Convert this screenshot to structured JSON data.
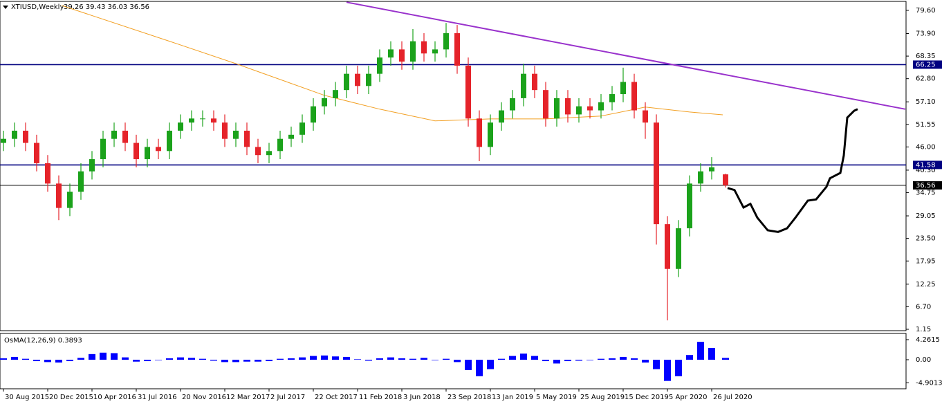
{
  "chart_data": {
    "type": "candlestick",
    "title": "XTIUSD,Weekly",
    "ohlc_text": "39,26 39.43 36.03 36.56",
    "up_color": "#1ba21b",
    "down_color": "#e5232a",
    "x": [
      0,
      4,
      8,
      12,
      16,
      20,
      24,
      28,
      32,
      36,
      40,
      44,
      48,
      52,
      56,
      60,
      64,
      68,
      72,
      76,
      80,
      84,
      88,
      92,
      96,
      100,
      104,
      108,
      112,
      116,
      120,
      124,
      128,
      132,
      136,
      140,
      144,
      148,
      152,
      156,
      160,
      164,
      168,
      172,
      176,
      180,
      184,
      188,
      192,
      196,
      200,
      204,
      208,
      212,
      216,
      220,
      224,
      228,
      232,
      236,
      240,
      244,
      248,
      252,
      256,
      261
    ],
    "open": [
      47,
      48,
      50,
      47,
      42,
      37,
      31,
      35,
      40,
      43,
      48,
      50,
      47,
      43,
      46,
      45,
      50,
      52,
      53,
      53,
      52,
      48,
      50,
      46,
      44,
      45,
      48,
      49,
      52,
      56,
      58,
      60,
      64,
      61,
      64,
      68,
      70,
      67,
      72,
      69,
      70,
      74,
      66,
      53,
      46,
      52,
      55,
      58,
      64,
      60,
      53,
      58,
      54,
      56,
      55,
      57,
      59,
      62,
      55,
      52,
      27,
      16,
      26,
      37,
      40,
      39.26
    ],
    "high": [
      50,
      52,
      52,
      49,
      44,
      39,
      37,
      42,
      45,
      50,
      52,
      52,
      49,
      48,
      48,
      52,
      54,
      55,
      55,
      55,
      54,
      52,
      52,
      48,
      47,
      50,
      51,
      54,
      58,
      60,
      62,
      66,
      66,
      66,
      70,
      72,
      72,
      75,
      74,
      72,
      76.5,
      76,
      68,
      55,
      54,
      57,
      60,
      66.5,
      66,
      62,
      60,
      60,
      58,
      58,
      59,
      61,
      65.5,
      64,
      57,
      54,
      29,
      28,
      39,
      42,
      43.5,
      39.43
    ],
    "low": [
      45,
      46,
      45,
      40,
      35,
      28,
      29,
      33,
      38,
      41,
      46,
      45,
      41,
      41,
      43,
      43,
      48,
      50,
      51,
      50,
      46,
      46,
      44,
      42,
      42,
      43,
      46,
      47,
      50,
      54,
      56,
      58,
      59,
      59,
      62,
      66,
      65,
      65,
      67,
      67,
      68,
      64,
      51,
      42.5,
      44,
      50,
      53,
      56,
      58,
      51,
      51,
      52,
      52,
      53,
      53,
      55,
      57,
      53,
      48,
      22,
      3.35,
      14,
      24,
      35,
      38,
      36.03
    ],
    "close": [
      48,
      50,
      47,
      42,
      37,
      31,
      35,
      40,
      43,
      48,
      50,
      47,
      43,
      46,
      45,
      50,
      52,
      53,
      53,
      52,
      48,
      50,
      46,
      44,
      45,
      48,
      49,
      52,
      56,
      58,
      60,
      64,
      61,
      64,
      68,
      70,
      67,
      72,
      69,
      70,
      74,
      66,
      53,
      46,
      52,
      55,
      58,
      64,
      60,
      53,
      58,
      54,
      56,
      55,
      57,
      59,
      62,
      55,
      52,
      27,
      16,
      26,
      37,
      40,
      41,
      36.56
    ],
    "xlim": [
      -1.25,
      326.25
    ],
    "ylim": [
      0.81,
      82.15
    ],
    "yticks": [
      {
        "value": 79.6,
        "label": "79.60"
      },
      {
        "value": 73.9,
        "label": "73.90"
      },
      68.35,
      {
        "value": 62.8,
        "label": "62.80"
      },
      {
        "value": 57.1,
        "label": "57.10"
      },
      51.55,
      {
        "value": 46,
        "label": "46.00"
      },
      {
        "value": 40.3,
        "label": "40.30"
      },
      34.75,
      29.05,
      {
        "value": 23.5,
        "label": "23.50"
      },
      17.95,
      12.25,
      {
        "value": 6.7,
        "label": "6.70"
      },
      1.15
    ],
    "xticks": [
      {
        "value": 0,
        "label": "30 Aug 2015"
      },
      {
        "value": 16,
        "label": "20 Dec 2015"
      },
      {
        "value": 32,
        "label": "10 Apr 2016"
      },
      {
        "value": 48,
        "label": "31 Jul 2016"
      },
      {
        "value": 64,
        "label": "20 Nov 2016"
      },
      {
        "value": 80,
        "label": "12 Mar 2017"
      },
      {
        "value": 96,
        "label": "2 Jul 2017"
      },
      {
        "value": 112,
        "label": "22 Oct 2017"
      },
      {
        "value": 128,
        "label": "11 Feb 2018"
      },
      {
        "value": 144,
        "label": "3 Jun 2018"
      },
      {
        "value": 160,
        "label": "23 Sep 2018"
      },
      {
        "value": 176,
        "label": "13 Jan 2019"
      },
      {
        "value": 192,
        "label": "5 May 2019"
      },
      {
        "value": 208,
        "label": "25 Aug 2019"
      },
      {
        "value": 224,
        "label": "15 Dec 2019"
      },
      {
        "value": 240,
        "label": "5 Apr 2020"
      },
      {
        "value": 256,
        "label": "26 Jul 2020"
      }
    ],
    "levels": [
      {
        "value": 66.25,
        "color": "#000080"
      },
      {
        "value": 41.58,
        "color": "#000080"
      },
      {
        "value": 36.56,
        "color": "#000000"
      }
    ],
    "moving_average": {
      "color": "#f2a024",
      "x": [
        21,
        60,
        84,
        116,
        136,
        156,
        176,
        196,
        216,
        232,
        248,
        260
      ],
      "values": [
        80.8,
        72,
        66.5,
        58.7,
        55.3,
        52.4,
        52.9,
        52.9,
        53.6,
        55.8,
        54.6,
        53.9
      ]
    },
    "trendline": {
      "color": "#9932cc",
      "x": [
        124,
        326
      ],
      "values": [
        81.6,
        55.3
      ]
    },
    "projection": {
      "color": "#000000",
      "x": [
        261.75,
        264.25,
        267.5,
        270,
        272.5,
        276.25,
        280,
        283.25,
        286.25,
        290.75,
        293.75,
        297.5,
        298.75,
        302.5,
        303.75,
        305,
        307.5,
        308.75
      ],
      "values": [
        35.9,
        35.4,
        31.1,
        32,
        28.6,
        25.5,
        25.1,
        26,
        28.6,
        32.8,
        33.1,
        36.2,
        38.3,
        39.6,
        43.9,
        53.2,
        54.9,
        55.3
      ]
    },
    "osma": {
      "title": "OsMA(12,26,9) 0.3893",
      "color": "#0000ff",
      "values": [
        0.3,
        0.6,
        0.2,
        -0.3,
        -0.5,
        -0.6,
        -0.3,
        0.4,
        1.2,
        1.5,
        1.4,
        0.5,
        -0.4,
        -0.3,
        -0.1,
        0.3,
        0.5,
        0.4,
        0.2,
        -0.2,
        -0.5,
        -0.5,
        -0.4,
        -0.4,
        -0.3,
        0.2,
        0.3,
        0.5,
        0.8,
        0.9,
        0.7,
        0.6,
        0.1,
        -0.2,
        0.3,
        0.5,
        0.3,
        0.2,
        0.4,
        -0.1,
        0.2,
        -0.5,
        -2.2,
        -3.5,
        -2.0,
        0.2,
        0.8,
        1.3,
        0.8,
        -0.3,
        -0.8,
        -0.3,
        -0.2,
        -0.1,
        0.2,
        0.3,
        0.6,
        0.3,
        -0.6,
        -2.0,
        -4.5,
        -3.5,
        1.0,
        3.8,
        2.5,
        0.3893
      ],
      "ylim": [
        -6.17,
        5.29
      ],
      "yticks": [
        4.2615,
        {
          "value": 0,
          "label": "0.00"
        },
        -4.9013
      ]
    }
  }
}
